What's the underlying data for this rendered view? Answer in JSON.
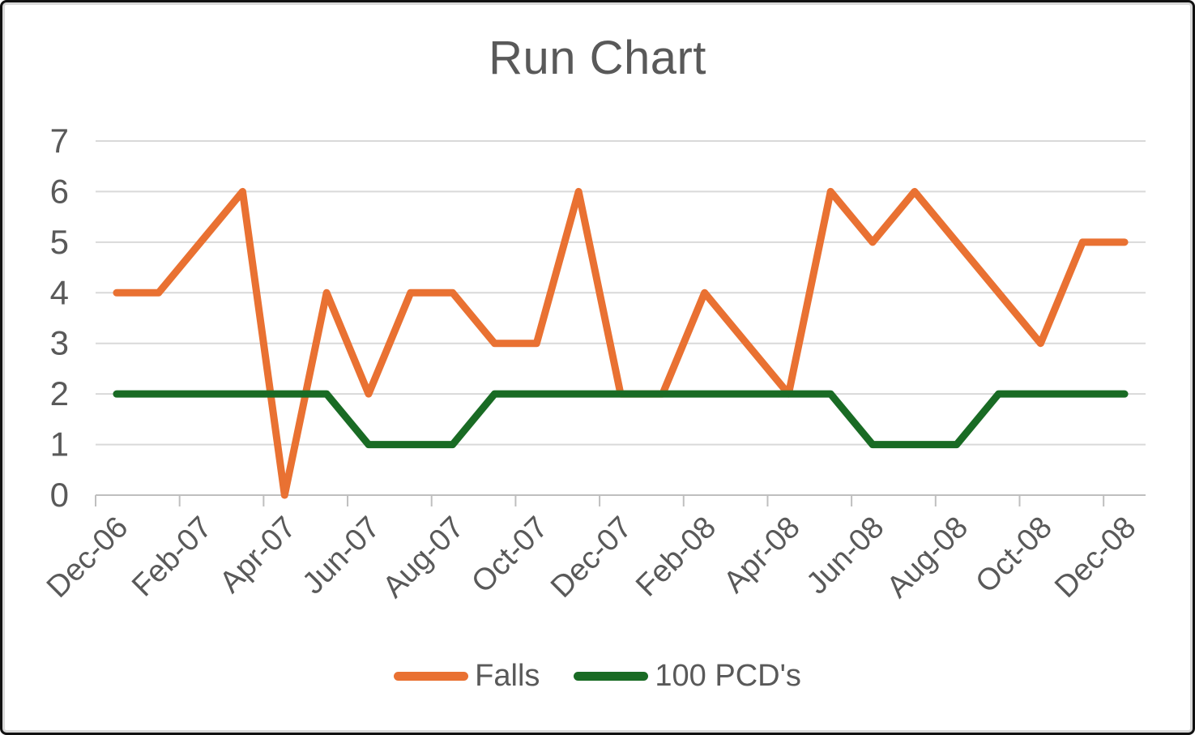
{
  "chart_data": {
    "type": "line",
    "title": "Run Chart",
    "categories": [
      "Dec-06",
      "Jan-07",
      "Feb-07",
      "Mar-07",
      "Apr-07",
      "May-07",
      "Jun-07",
      "Jul-07",
      "Aug-07",
      "Sep-07",
      "Oct-07",
      "Nov-07",
      "Dec-07",
      "Jan-08",
      "Feb-08",
      "Mar-08",
      "Apr-08",
      "May-08",
      "Jun-08",
      "Jul-08",
      "Aug-08",
      "Sep-08",
      "Oct-08",
      "Nov-08",
      "Dec-08"
    ],
    "x_tick_labels": [
      "Dec-06",
      "Feb-07",
      "Apr-07",
      "Jun-07",
      "Aug-07",
      "Oct-07",
      "Dec-07",
      "Feb-08",
      "Apr-08",
      "Jun-08",
      "Aug-08",
      "Oct-08",
      "Dec-08"
    ],
    "series": [
      {
        "name": "Falls",
        "color": "#E97132",
        "values": [
          4,
          4,
          5,
          6,
          0,
          4,
          2,
          4,
          4,
          3,
          3,
          6,
          2,
          2,
          4,
          3,
          2,
          6,
          5,
          6,
          5,
          4,
          3,
          5,
          5
        ]
      },
      {
        "name": "100 PCD's",
        "color": "#196B24",
        "values": [
          2,
          2,
          2,
          2,
          2,
          2,
          1,
          1,
          1,
          2,
          2,
          2,
          2,
          2,
          2,
          2,
          2,
          2,
          1,
          1,
          1,
          2,
          2,
          2,
          2
        ]
      }
    ],
    "ylim": [
      0,
      7
    ],
    "y_ticks": [
      0,
      1,
      2,
      3,
      4,
      5,
      6,
      7
    ],
    "grid": "horizontal",
    "legend_position": "bottom",
    "text_color": "#595959",
    "gridline_color": "#D9D9D9",
    "axis_line_color": "#BFBFBF"
  }
}
